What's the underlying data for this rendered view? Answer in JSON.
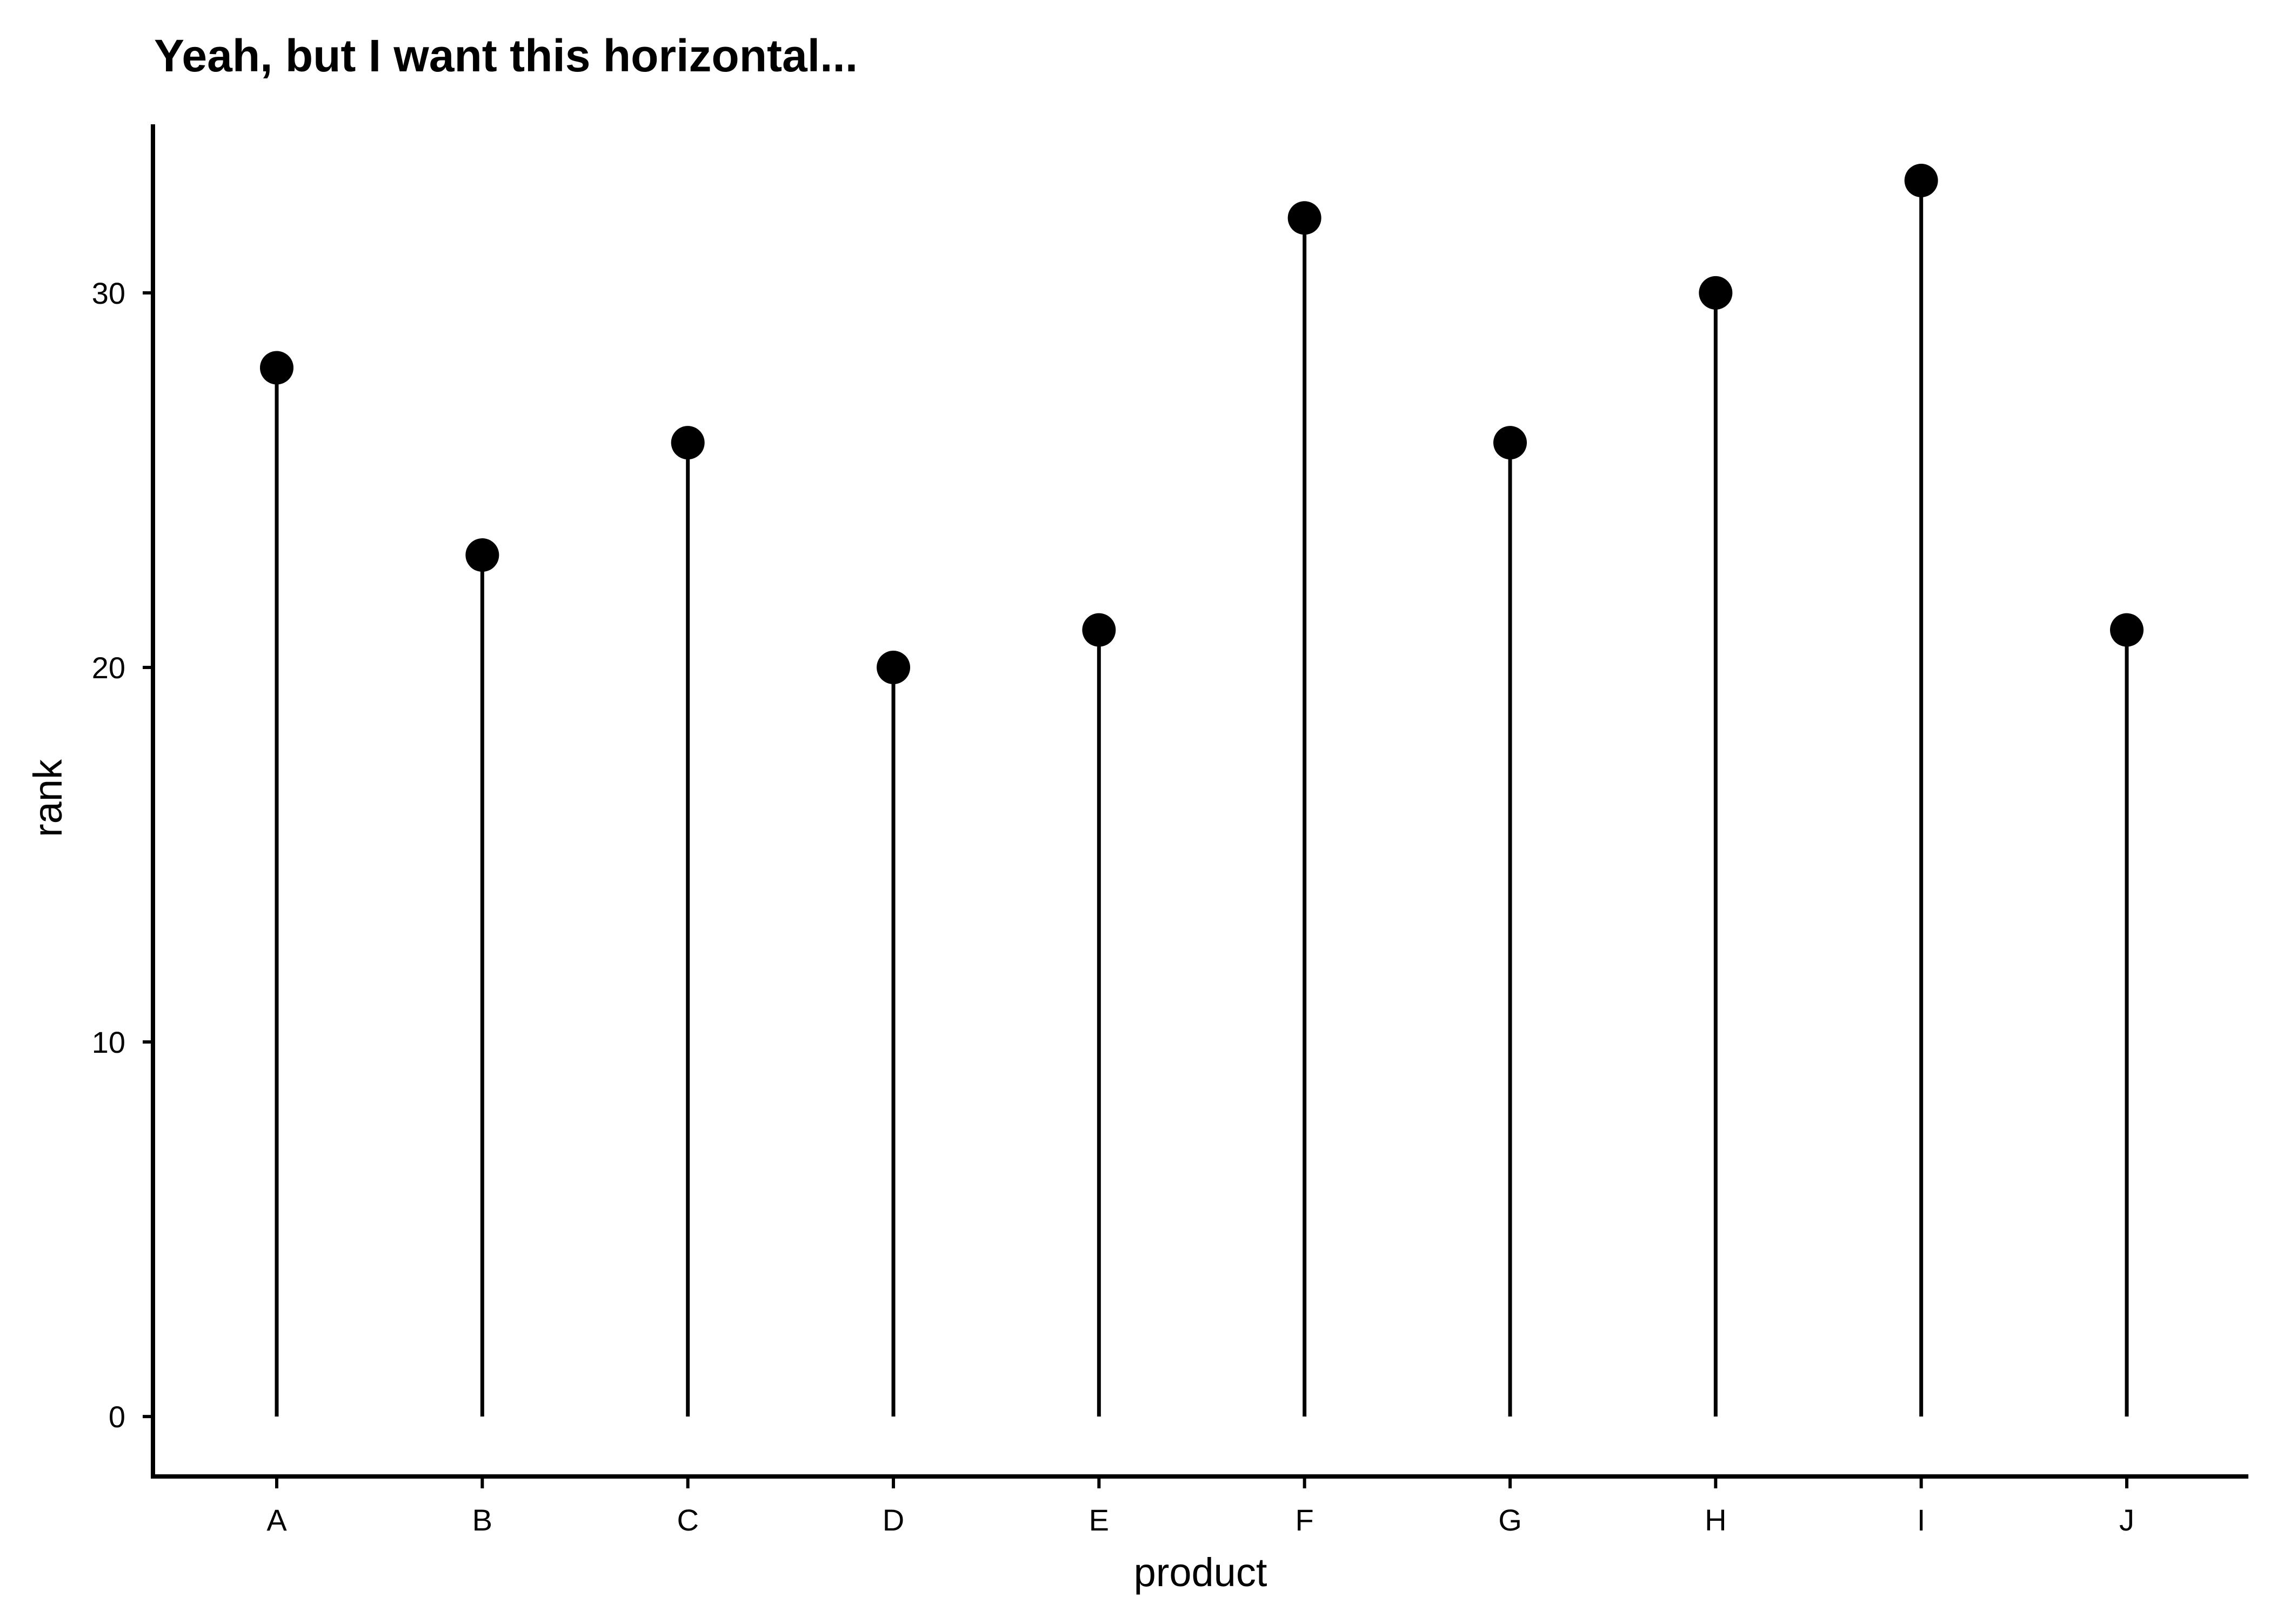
{
  "chart_data": {
    "type": "lollipop",
    "title": "Yeah, but I want this horizontal...",
    "xlabel": "product",
    "ylabel": "rank",
    "categories": [
      "A",
      "B",
      "C",
      "D",
      "E",
      "F",
      "G",
      "H",
      "I",
      "J"
    ],
    "values": [
      28,
      23,
      26,
      20,
      21,
      32,
      26,
      30,
      33,
      21
    ],
    "baseline": 0,
    "ylim": [
      -1.6,
      34.5
    ],
    "yticks": [
      0,
      10,
      20,
      30
    ],
    "grid": false,
    "legend": "none",
    "colors": {
      "stem": "#000000",
      "point": "#000000",
      "axis": "#000000",
      "background": "#ffffff"
    }
  }
}
